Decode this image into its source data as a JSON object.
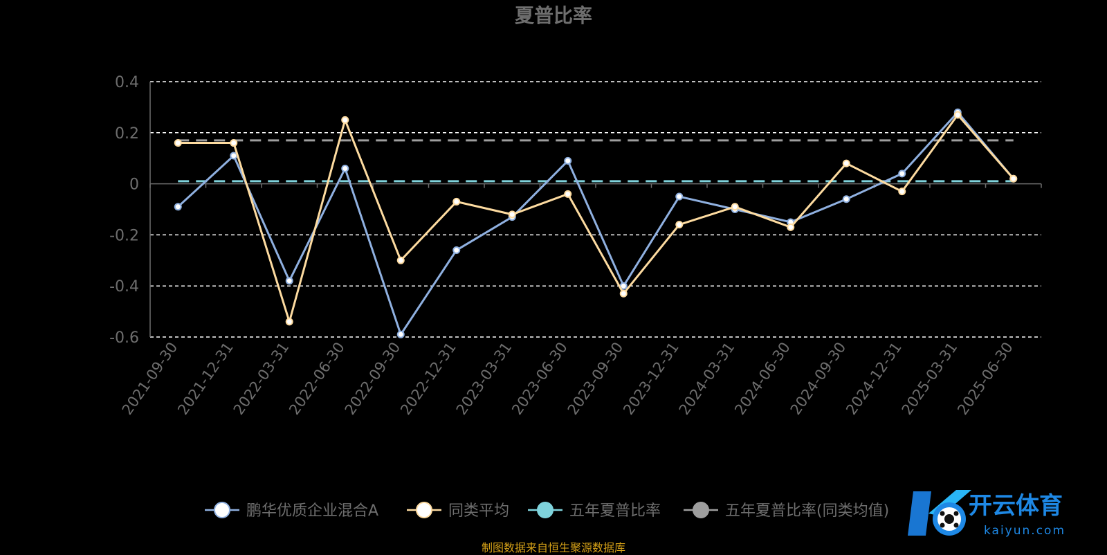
{
  "chart_data": {
    "type": "line",
    "title": "夏普比率",
    "categories": [
      "2021-09-30",
      "2021-12-31",
      "2022-03-31",
      "2022-06-30",
      "2022-09-30",
      "2022-12-31",
      "2023-03-31",
      "2023-06-30",
      "2023-09-30",
      "2023-12-31",
      "2024-03-31",
      "2024-06-30",
      "2024-09-30",
      "2024-12-31",
      "2025-03-31",
      "2025-06-30"
    ],
    "ylim": [
      -0.6,
      0.4
    ],
    "yticks": [
      "0.4",
      "0.2",
      "0",
      "-0.2",
      "-0.4",
      "-0.6"
    ],
    "ytick_values": [
      0.4,
      0.2,
      0,
      -0.2,
      -0.4,
      -0.6
    ],
    "grid": true,
    "legend_position": "bottom",
    "series": [
      {
        "name": "鹏华优质企业混合A",
        "color": "#8fb0e0",
        "values": [
          -0.09,
          0.11,
          -0.38,
          0.06,
          -0.59,
          -0.26,
          -0.13,
          0.09,
          -0.4,
          -0.05,
          -0.1,
          -0.15,
          -0.06,
          0.04,
          0.28,
          0.02
        ]
      },
      {
        "name": "同类平均",
        "color": "#fddba0",
        "values": [
          0.16,
          0.16,
          -0.54,
          0.25,
          -0.3,
          -0.07,
          -0.12,
          -0.04,
          -0.43,
          -0.16,
          -0.09,
          -0.17,
          0.08,
          -0.03,
          0.27,
          0.02
        ]
      },
      {
        "name": "五年夏普比率",
        "color": "#7fd3dc",
        "dashed": true,
        "values": [
          0.01,
          0.01,
          0.01,
          0.01,
          0.01,
          0.01,
          0.01,
          0.01,
          0.01,
          0.01,
          0.01,
          0.01,
          0.01,
          0.01,
          0.01,
          0.01
        ]
      },
      {
        "name": "五年夏普比率(同类均值)",
        "color": "#9e9e9e",
        "dashed": true,
        "values": [
          0.17,
          0.17,
          0.17,
          0.17,
          0.17,
          0.17,
          0.17,
          0.17,
          0.17,
          0.17,
          0.17,
          0.17,
          0.17,
          0.17,
          0.17,
          0.17
        ]
      }
    ]
  },
  "source_note": "制图数据来自恒生聚源数据库",
  "watermark": {
    "brand_cn": "开云体育",
    "brand_en": "kaiyun.com",
    "color": "#1e88e5"
  }
}
